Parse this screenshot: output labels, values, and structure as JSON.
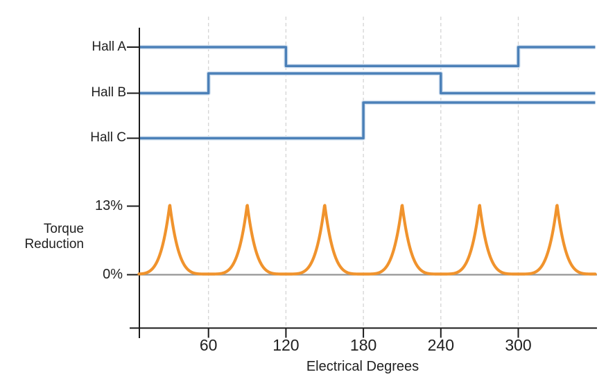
{
  "chart_data": {
    "type": "line",
    "title": "",
    "xlabel": "Electrical Degrees",
    "x_range_deg": [
      0,
      360
    ],
    "x_tick_degs": [
      60,
      120,
      180,
      240,
      300
    ],
    "x_tick_labels": [
      "60",
      "120",
      "180",
      "240",
      "300"
    ],
    "grid": "vertical dashed lines at each x tick",
    "legend_position": "none",
    "hall_signals": [
      {
        "name": "Hall A",
        "initial_level": 1,
        "edges": [
          {
            "deg": 120,
            "level": 0
          },
          {
            "deg": 300,
            "level": 1
          }
        ]
      },
      {
        "name": "Hall B",
        "initial_level": 0,
        "edges": [
          {
            "deg": 60,
            "level": 1
          },
          {
            "deg": 240,
            "level": 0
          }
        ]
      },
      {
        "name": "Hall C",
        "initial_level": 0,
        "edges": [
          {
            "deg": 180,
            "level": 1
          }
        ]
      }
    ],
    "torque_reduction": {
      "axis_label_lines": [
        "Torque",
        "Reduction"
      ],
      "y_tick_labels": [
        "13%",
        "0%"
      ],
      "peak_pct": 13,
      "min_pct": 0,
      "period_deg": 60,
      "peaks_at_deg": [
        30,
        90,
        150,
        210,
        270,
        330
      ],
      "zeros_at_deg": [
        0,
        60,
        120,
        180,
        240,
        300,
        360
      ],
      "shape": "cusped 1-cos ripple, sharp peaks at midpoints, flat zero valleys at ticks"
    },
    "colors": {
      "hall_line": "#4b80b8",
      "hall_halo": "#d9e5f2",
      "torque_line": "#f0932d",
      "zero_baseline": "#949494",
      "grid": "#d4d4d4",
      "axis": "#1a1a1a",
      "text": "#202020"
    }
  }
}
